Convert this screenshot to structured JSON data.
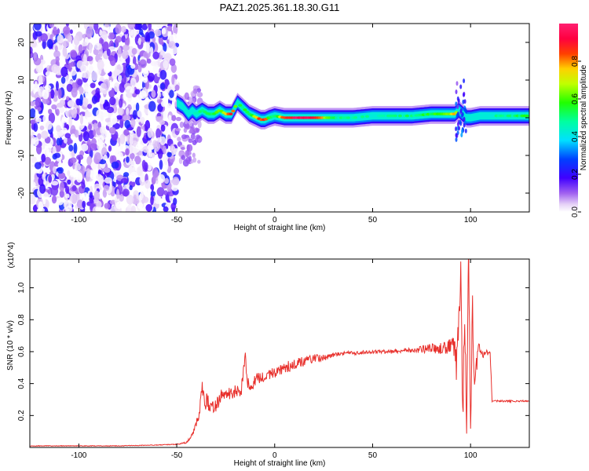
{
  "title": "PAZ1.2025.361.18.30.G11",
  "chart_data": [
    {
      "type": "heatmap",
      "xlabel": "Height of straight line (km)",
      "ylabel": "Frequency (Hz)",
      "xlim": [
        -125,
        130
      ],
      "ylim": [
        -25,
        25
      ],
      "xticks": [
        -100,
        -50,
        0,
        50,
        100
      ],
      "yticks": [
        -20,
        -10,
        0,
        10,
        20
      ],
      "colorbar": {
        "label": "Normalized spectral amplitude",
        "range": [
          0,
          1
        ],
        "ticks": [
          0.0,
          0.2,
          0.4,
          0.6,
          0.8
        ],
        "colormap": "rainbow (white-purple-blue-cyan-green-yellow-red-magenta)"
      },
      "noise_region": {
        "x": [
          -125,
          -50
        ],
        "y": [
          -25,
          25
        ],
        "amplitude": [
          0.0,
          0.25
        ]
      },
      "ridge": {
        "x": [
          -50,
          -47,
          -44,
          -42,
          -40,
          -37,
          -34,
          -31,
          -28,
          -25,
          -22,
          -19,
          -17,
          -15,
          -13,
          -11,
          -9,
          -7,
          -5,
          -3,
          0,
          5,
          10,
          20,
          30,
          40,
          50,
          60,
          70,
          80,
          88,
          92,
          94,
          96,
          98,
          100,
          105,
          110,
          115,
          120,
          125,
          130
        ],
        "y": [
          4,
          3,
          1,
          2,
          1,
          2,
          1,
          1,
          2,
          1,
          1,
          4,
          3,
          2,
          1,
          0.5,
          0,
          -0.5,
          -0.5,
          0,
          0.5,
          0,
          0,
          0,
          0,
          0,
          0.5,
          0.5,
          0.5,
          1,
          1,
          1,
          2,
          1,
          0,
          0,
          0.5,
          0.5,
          0.5,
          0.5,
          0.5,
          0.5
        ],
        "amplitude": [
          0.3,
          0.4,
          0.45,
          0.45,
          0.5,
          0.5,
          0.55,
          0.55,
          0.6,
          0.7,
          0.95,
          0.5,
          0.5,
          0.55,
          0.55,
          0.6,
          0.8,
          0.85,
          0.85,
          0.6,
          0.5,
          0.85,
          0.95,
          0.95,
          0.5,
          0.45,
          0.45,
          0.45,
          0.5,
          0.55,
          0.6,
          0.8,
          0.4,
          0.35,
          0.3,
          0.35,
          0.4,
          0.4,
          0.5,
          0.5,
          0.5,
          0.55
        ]
      },
      "spike_region": {
        "x": [
          92,
          98
        ],
        "y": [
          -6,
          10
        ]
      }
    },
    {
      "type": "line",
      "xlabel": "Height of straight line (km)",
      "ylabel": "SNR (10 * v/v)",
      "yscale_label": "(x10^4)",
      "xlim": [
        -125,
        130
      ],
      "ylim": [
        0,
        1.18
      ],
      "xticks": [
        -100,
        -50,
        0,
        50,
        100
      ],
      "yticks": [
        0.2,
        0.4,
        0.6,
        0.8,
        1.0
      ],
      "series": [
        {
          "color": "#e8302c",
          "x": [
            -125,
            -100,
            -80,
            -60,
            -50,
            -45,
            -42,
            -40,
            -38,
            -37,
            -36,
            -35,
            -33,
            -30,
            -28,
            -25,
            -20,
            -17,
            -15,
            -14,
            -12,
            -10,
            -5,
            0,
            5,
            10,
            15,
            20,
            25,
            30,
            35,
            40,
            50,
            60,
            70,
            80,
            88,
            91,
            93,
            95,
            96,
            97,
            98,
            99,
            100,
            101,
            102,
            104,
            106,
            110,
            111,
            115,
            120,
            125,
            130
          ],
          "y": [
            0.01,
            0.01,
            0.01,
            0.015,
            0.02,
            0.03,
            0.08,
            0.15,
            0.25,
            0.38,
            0.28,
            0.3,
            0.25,
            0.26,
            0.32,
            0.33,
            0.35,
            0.36,
            0.58,
            0.4,
            0.38,
            0.42,
            0.45,
            0.47,
            0.5,
            0.52,
            0.54,
            0.56,
            0.56,
            0.58,
            0.59,
            0.59,
            0.6,
            0.6,
            0.61,
            0.62,
            0.62,
            0.66,
            0.5,
            1.17,
            0.15,
            0.85,
            0.22,
            1.17,
            0.2,
            0.85,
            0.35,
            0.65,
            0.58,
            0.6,
            0.29,
            0.29,
            0.29,
            0.29,
            0.29
          ],
          "noise_amplitude": [
            0.002,
            0.002,
            0.002,
            0.002,
            0.003,
            0.005,
            0.01,
            0.02,
            0.05,
            0.06,
            0.05,
            0.06,
            0.05,
            0.05,
            0.05,
            0.04,
            0.04,
            0.04,
            0.02,
            0.04,
            0.04,
            0.04,
            0.035,
            0.035,
            0.035,
            0.035,
            0.03,
            0.025,
            0.02,
            0.015,
            0.012,
            0.012,
            0.01,
            0.012,
            0.015,
            0.03,
            0.04,
            0.05,
            0.15,
            0.15,
            0.15,
            0.15,
            0.15,
            0.15,
            0.15,
            0.15,
            0.1,
            0.04,
            0.02,
            0.02,
            0.005,
            0.006,
            0.006,
            0.006,
            0.006
          ]
        }
      ]
    }
  ]
}
